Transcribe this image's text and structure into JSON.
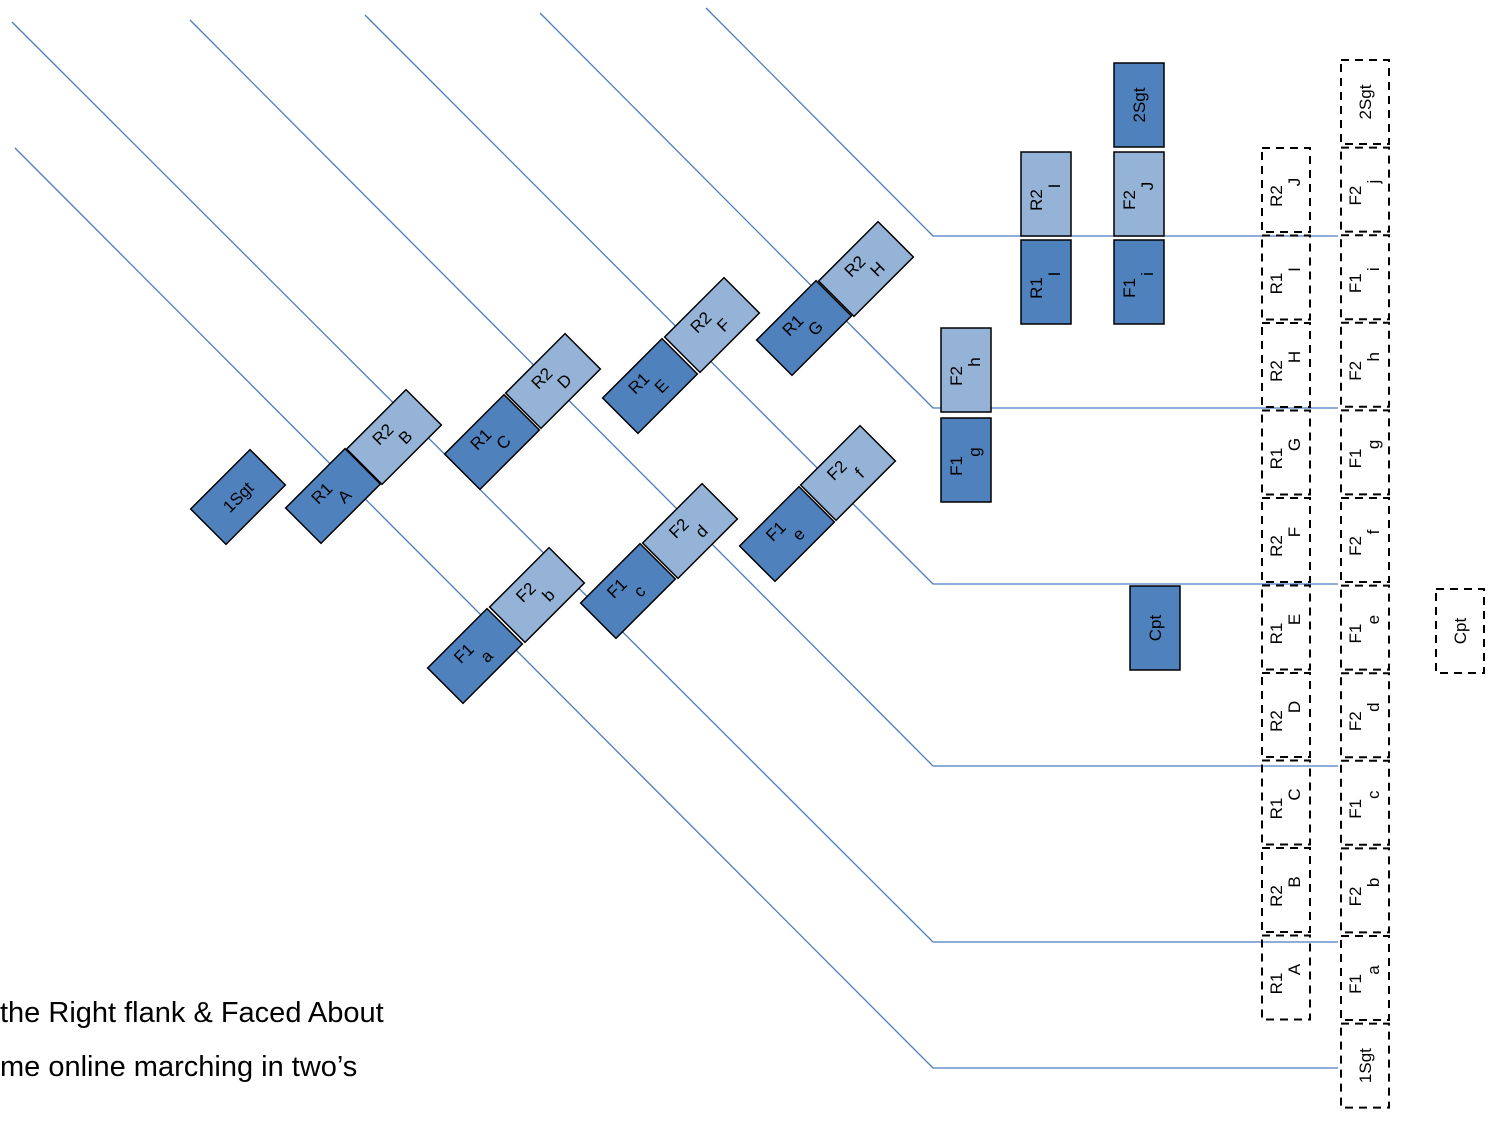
{
  "colors": {
    "line": "#4a7cc0",
    "dark_fill": "#4f81bd",
    "light_fill": "#95b3d7",
    "stroke": "#000000",
    "dashed_stroke": "#000000"
  },
  "caption": {
    "line1": "the Right flank & Faced About",
    "line2": "me online marching in two’s"
  },
  "moving_blocks": [
    {
      "id": "1Sgt",
      "l1": "1Sgt",
      "l2": ""
    },
    {
      "id": "A",
      "l1": "R1",
      "l2": "A"
    },
    {
      "id": "B",
      "l1": "R2",
      "l2": "B"
    },
    {
      "id": "C",
      "l1": "R1",
      "l2": "C"
    },
    {
      "id": "D",
      "l1": "R2",
      "l2": "D"
    },
    {
      "id": "E",
      "l1": "R1",
      "l2": "E"
    },
    {
      "id": "F",
      "l1": "R2",
      "l2": "F"
    },
    {
      "id": "G",
      "l1": "R1",
      "l2": "G"
    },
    {
      "id": "H",
      "l1": "R2",
      "l2": "H"
    },
    {
      "id": "a",
      "l1": "F1",
      "l2": "a"
    },
    {
      "id": "b",
      "l1": "F2",
      "l2": "b"
    },
    {
      "id": "c",
      "l1": "F1",
      "l2": "c"
    },
    {
      "id": "d",
      "l1": "F2",
      "l2": "d"
    },
    {
      "id": "e",
      "l1": "F1",
      "l2": "e"
    },
    {
      "id": "f",
      "l1": "F2",
      "l2": "f"
    }
  ],
  "upright_blocks": [
    {
      "id": "g",
      "l1": "F1",
      "l2": "g"
    },
    {
      "id": "h",
      "l1": "F2",
      "l2": "h"
    },
    {
      "id": "I1",
      "l1": "R1",
      "l2": "I"
    },
    {
      "id": "I2",
      "l1": "R2",
      "l2": "I"
    },
    {
      "id": "i",
      "l1": "F1",
      "l2": "i"
    },
    {
      "id": "J",
      "l1": "F2",
      "l2": "J"
    },
    {
      "id": "2Sgt",
      "l1": "2Sgt",
      "l2": ""
    },
    {
      "id": "Cpt",
      "l1": "Cpt",
      "l2": ""
    }
  ],
  "final_rear_column": [
    {
      "l1": "R2",
      "l2": "J"
    },
    {
      "l1": "R1",
      "l2": "I"
    },
    {
      "l1": "R2",
      "l2": "H"
    },
    {
      "l1": "R1",
      "l2": "G"
    },
    {
      "l1": "R2",
      "l2": "F"
    },
    {
      "l1": "R1",
      "l2": "E"
    },
    {
      "l1": "R2",
      "l2": "D"
    },
    {
      "l1": "R1",
      "l2": "C"
    },
    {
      "l1": "R2",
      "l2": "B"
    },
    {
      "l1": "R1",
      "l2": "A"
    }
  ],
  "final_front_column": [
    {
      "l1": "2Sgt",
      "l2": ""
    },
    {
      "l1": "F2",
      "l2": "j"
    },
    {
      "l1": "F1",
      "l2": "i"
    },
    {
      "l1": "F2",
      "l2": "h"
    },
    {
      "l1": "F1",
      "l2": "g"
    },
    {
      "l1": "F2",
      "l2": "f"
    },
    {
      "l1": "F1",
      "l2": "e"
    },
    {
      "l1": "F2",
      "l2": "d"
    },
    {
      "l1": "F1",
      "l2": "c"
    },
    {
      "l1": "F2",
      "l2": "b"
    },
    {
      "l1": "F1",
      "l2": "a"
    },
    {
      "l1": "1Sgt",
      "l2": ""
    }
  ],
  "final_captain": {
    "l1": "Cpt",
    "l2": ""
  }
}
